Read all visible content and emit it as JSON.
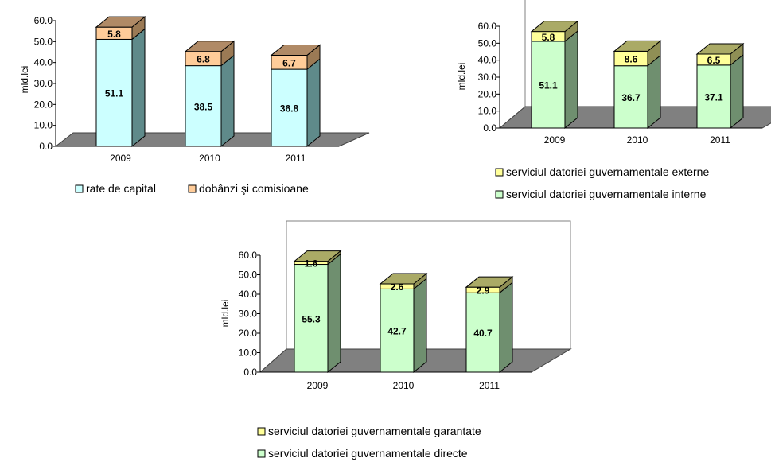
{
  "chart_data": [
    {
      "type": "bar",
      "stacked": true,
      "three_d": true,
      "categories": [
        "2009",
        "2010",
        "2011"
      ],
      "ylabel": "mld.lei",
      "ylim": [
        0,
        60
      ],
      "yticks": [
        "0.0",
        "10.0",
        "20.0",
        "30.0",
        "40.0",
        "50.0",
        "60.0"
      ],
      "legend_position": "bottom",
      "series": [
        {
          "name": "rate de capital",
          "values": [
            51.1,
            38.5,
            36.8
          ],
          "labels": [
            "51.1",
            "38.5",
            "36.8"
          ],
          "color": "#ccffff",
          "side_color": "#5f8a8a",
          "top_color": "#8fbcbc"
        },
        {
          "name": "dobânzi şi comisioane",
          "values": [
            5.8,
            6.8,
            6.7
          ],
          "labels": [
            "5.8",
            "6.8",
            "6.7"
          ],
          "color": "#ffcc99",
          "side_color": "#9b7a55",
          "top_color": "#b08a66"
        }
      ]
    },
    {
      "type": "bar",
      "stacked": true,
      "three_d": true,
      "categories": [
        "2009",
        "2010",
        "2011"
      ],
      "ylabel": "mld.lei",
      "ylim": [
        0,
        60
      ],
      "yticks": [
        "0.0",
        "10.0",
        "20.0",
        "30.0",
        "40.0",
        "50.0",
        "60.0"
      ],
      "legend_position": "bottom",
      "series": [
        {
          "name": "serviciul datoriei guvernamentale interne",
          "values": [
            51.1,
            36.7,
            37.1
          ],
          "labels": [
            "51.1",
            "36.7",
            "37.1"
          ],
          "color": "#ccffcc",
          "side_color": "#6f8f6f",
          "top_color": "#8fb08f"
        },
        {
          "name": "serviciul datoriei guvernamentale externe",
          "values": [
            5.8,
            8.6,
            6.5
          ],
          "labels": [
            "5.8",
            "8.6",
            "6.5"
          ],
          "color": "#ffff99",
          "side_color": "#8f8f55",
          "top_color": "#aaaa66"
        }
      ]
    },
    {
      "type": "bar",
      "stacked": true,
      "three_d": true,
      "categories": [
        "2009",
        "2010",
        "2011"
      ],
      "ylabel": "mld.lei",
      "ylim": [
        0,
        60
      ],
      "yticks": [
        "0.0",
        "10.0",
        "20.0",
        "30.0",
        "40.0",
        "50.0",
        "60.0"
      ],
      "legend_position": "bottom",
      "series": [
        {
          "name": "serviciul datoriei guvernamentale directe",
          "values": [
            55.3,
            42.7,
            40.7
          ],
          "labels": [
            "55.3",
            "42.7",
            "40.7"
          ],
          "color": "#ccffcc",
          "side_color": "#6f8f6f",
          "top_color": "#8fb08f"
        },
        {
          "name": "serviciul datoriei guvernamentale garantate",
          "values": [
            1.6,
            2.6,
            2.9
          ],
          "labels": [
            "1.6",
            "2.6",
            "2.9"
          ],
          "color": "#ffff99",
          "side_color": "#8f8f55",
          "top_color": "#aaaa66"
        }
      ]
    }
  ]
}
